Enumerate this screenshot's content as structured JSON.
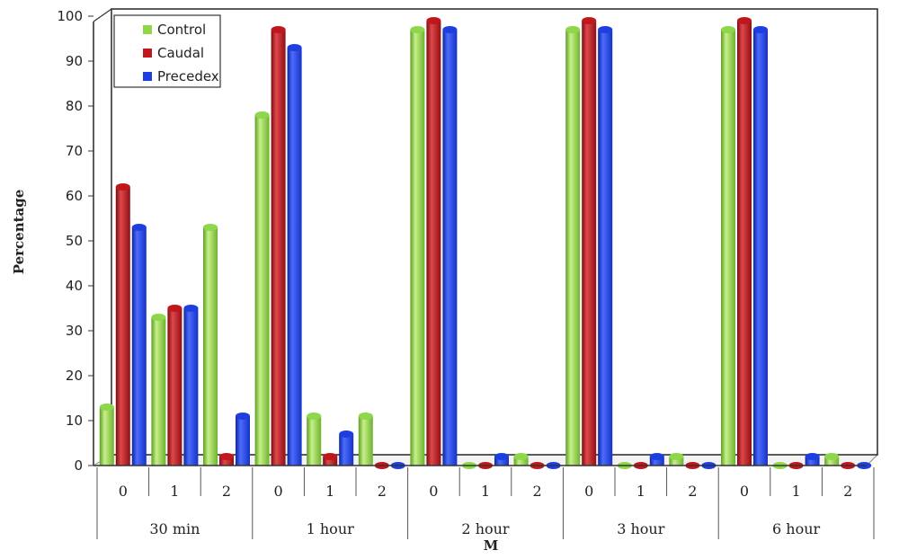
{
  "chart_data": {
    "type": "bar",
    "xlabel": "M",
    "ylabel": "Percentage",
    "ylim": [
      0,
      100
    ],
    "yticks": [
      0,
      10,
      20,
      30,
      40,
      50,
      60,
      70,
      80,
      90,
      100
    ],
    "categories": [
      "0",
      "1",
      "2",
      "0",
      "1",
      "2",
      "0",
      "1",
      "2",
      "0",
      "1",
      "2",
      "0",
      "1",
      "2"
    ],
    "groups": [
      {
        "label": "30 min"
      },
      {
        "label": "1 hour"
      },
      {
        "label": "2 hour"
      },
      {
        "label": "3 hour"
      },
      {
        "label": "6 hour"
      }
    ],
    "series": [
      {
        "name": "Control",
        "color": "#8ed64a",
        "values": [
          13,
          33,
          53,
          78,
          11,
          11,
          97,
          0,
          2,
          97,
          0,
          2,
          97,
          0,
          2
        ]
      },
      {
        "name": "Caudal",
        "color": "#c0171c",
        "values": [
          62,
          35,
          2,
          97,
          2,
          0,
          99,
          0,
          0,
          99,
          0,
          0,
          99,
          0,
          0
        ]
      },
      {
        "name": "Precedex",
        "color": "#1d3fe0",
        "values": [
          53,
          35,
          11,
          93,
          7,
          0,
          97,
          2,
          0,
          97,
          2,
          0,
          97,
          2,
          0
        ]
      }
    ],
    "legend_position": "top-left",
    "grid": false
  }
}
